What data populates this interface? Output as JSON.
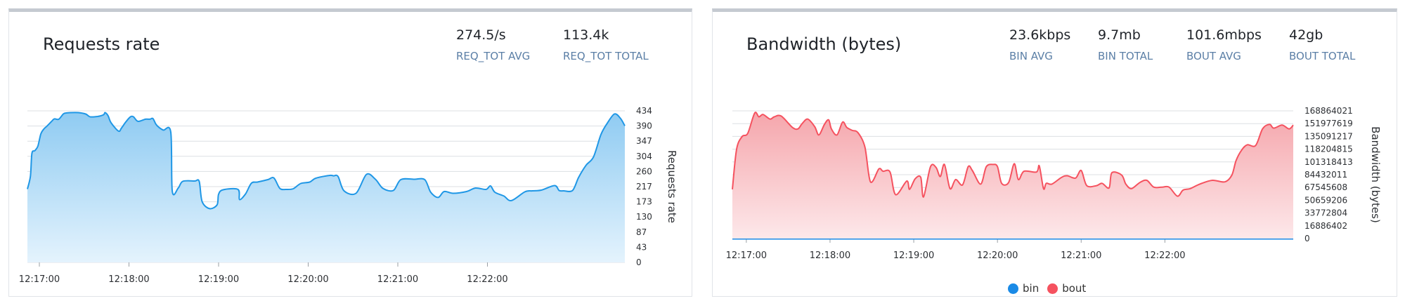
{
  "chart_data": [
    {
      "type": "area",
      "title": "Requests rate",
      "ylabel": "Requests rate",
      "xlabel": "",
      "ylim": [
        0,
        434
      ],
      "y_ticks": [
        "434",
        "390",
        "347",
        "304",
        "260",
        "217",
        "173",
        "130",
        "87",
        "43",
        "0"
      ],
      "x_tick_labels": [
        "12:17:00",
        "12:18:00",
        "12:19:00",
        "12:20:00",
        "12:21:00",
        "12:22:00"
      ],
      "x_tick_seconds": [
        0,
        60,
        120,
        180,
        240,
        300
      ],
      "x_range_seconds": [
        -8,
        392
      ],
      "grid": true,
      "stats": [
        {
          "value": "274.5/s",
          "label": "REQ_TOT AVG"
        },
        {
          "value": "113.4k",
          "label": "REQ_TOT TOTAL"
        }
      ],
      "series": [
        {
          "color": "#1f97e6",
          "fill_top": "#8fcbf2",
          "fill_bottom": "#e4f3fd",
          "x": [
            -8,
            -6,
            -5,
            -3,
            -1,
            1,
            3,
            5,
            8,
            10,
            13,
            16,
            18,
            21,
            26,
            31,
            34,
            39,
            43,
            44,
            46,
            48,
            53,
            55,
            58,
            61,
            63,
            66,
            71,
            74,
            76,
            78,
            80,
            83,
            88,
            89,
            93,
            96,
            104,
            107,
            109,
            114,
            119,
            120,
            123,
            133,
            134,
            138,
            142,
            146,
            153,
            157,
            161,
            165,
            170,
            175,
            181,
            185,
            194,
            197,
            200,
            204,
            212,
            219,
            225,
            230,
            237,
            242,
            251,
            258,
            262,
            267,
            271,
            277,
            286,
            292,
            299,
            302,
            305,
            311,
            316,
            325,
            330,
            336,
            345,
            348,
            351,
            357,
            361,
            366,
            371,
            376,
            380,
            385,
            389,
            392
          ],
          "values": [
            210,
            247,
            312,
            320,
            333,
            368,
            382,
            390,
            403,
            411,
            410,
            425,
            428,
            429,
            429,
            425,
            417,
            418,
            423,
            429,
            420,
            400,
            376,
            385,
            403,
            417,
            417,
            404,
            410,
            410,
            412,
            396,
            387,
            379,
            373,
            204,
            213,
            232,
            233,
            232,
            174,
            154,
            165,
            195,
            208,
            209,
            180,
            196,
            227,
            230,
            237,
            242,
            212,
            209,
            211,
            226,
            230,
            241,
            249,
            248,
            246,
            205,
            198,
            252,
            238,
            212,
            206,
            237,
            238,
            237,
            201,
            186,
            203,
            198,
            203,
            213,
            209,
            219,
            201,
            190,
            177,
            202,
            205,
            207,
            220,
            206,
            205,
            206,
            243,
            278,
            302,
            366,
            397,
            425,
            413,
            391
          ]
        }
      ]
    },
    {
      "type": "area",
      "title": "Bandwidth (bytes)",
      "ylabel": "Bandwidth (bytes)",
      "xlabel": "",
      "ylim": [
        0,
        168864021
      ],
      "y_ticks": [
        "168864021",
        "151977619",
        "135091217",
        "118204815",
        "101318413",
        "84432011",
        "67545608",
        "50659206",
        "33772804",
        "16886402",
        "0"
      ],
      "x_tick_labels": [
        "12:17:00",
        "12:18:00",
        "12:19:00",
        "12:20:00",
        "12:21:00",
        "12:22:00"
      ],
      "x_tick_seconds": [
        0,
        60,
        120,
        180,
        240,
        300
      ],
      "x_range_seconds": [
        -10,
        392
      ],
      "grid": true,
      "stats": [
        {
          "value": "23.6kbps",
          "label": "BIN AVG"
        },
        {
          "value": "9.7mb",
          "label": "BIN TOTAL"
        },
        {
          "value": "101.6mbps",
          "label": "BOUT AVG"
        },
        {
          "value": "42gb",
          "label": "BOUT TOTAL"
        }
      ],
      "legend": [
        {
          "name": "bin",
          "color": "#1a8ae6"
        },
        {
          "name": "bout",
          "color": "#f5525f"
        }
      ],
      "series": [
        {
          "name": "bin",
          "color": "#1a8ae6",
          "x": [
            -10,
            392
          ],
          "values": [
            0,
            0
          ]
        },
        {
          "name": "bout",
          "color": "#f5525f",
          "fill_top": "#f5a6ac",
          "fill_bottom": "#fde8ea",
          "x": [
            -10,
            -7,
            -3,
            1,
            6,
            9,
            12,
            17,
            20,
            25,
            33,
            37,
            40,
            44,
            49,
            52,
            56,
            59,
            61,
            65,
            69,
            72,
            76,
            80,
            85,
            89,
            95,
            98,
            103,
            107,
            115,
            117,
            121,
            125,
            127,
            132,
            136,
            139,
            142,
            146,
            150,
            155,
            159,
            162,
            168,
            172,
            177,
            180,
            183,
            188,
            192,
            195,
            199,
            208,
            210,
            213,
            215,
            219,
            226,
            230,
            236,
            240,
            244,
            251,
            255,
            260,
            262,
            269,
            272,
            276,
            282,
            287,
            292,
            298,
            303,
            309,
            313,
            318,
            325,
            334,
            343,
            348,
            351,
            355,
            359,
            365,
            370,
            375,
            378,
            384,
            389,
            392
          ],
          "values": [
            65000000,
            118000000,
            135000000,
            139000000,
            166000000,
            161000000,
            164000000,
            158000000,
            161000000,
            162000000,
            147000000,
            145000000,
            152000000,
            158000000,
            148000000,
            137000000,
            151000000,
            157000000,
            145000000,
            137000000,
            154000000,
            147000000,
            143000000,
            140000000,
            121000000,
            75000000,
            92000000,
            89000000,
            88000000,
            58000000,
            76000000,
            65000000,
            79000000,
            81000000,
            55000000,
            95000000,
            94000000,
            82000000,
            98000000,
            66000000,
            78000000,
            71000000,
            95000000,
            90000000,
            72000000,
            95000000,
            98000000,
            95000000,
            73000000,
            74000000,
            99000000,
            78000000,
            89000000,
            88000000,
            96000000,
            66000000,
            73000000,
            72000000,
            81000000,
            83000000,
            80000000,
            90000000,
            70000000,
            70000000,
            73000000,
            67000000,
            87000000,
            84000000,
            72000000,
            66000000,
            74000000,
            77000000,
            68000000,
            68000000,
            68000000,
            56000000,
            64000000,
            66000000,
            72000000,
            77000000,
            75000000,
            84000000,
            103000000,
            117000000,
            124000000,
            123000000,
            145000000,
            151000000,
            146000000,
            150000000,
            145000000,
            150000000
          ]
        }
      ]
    }
  ]
}
